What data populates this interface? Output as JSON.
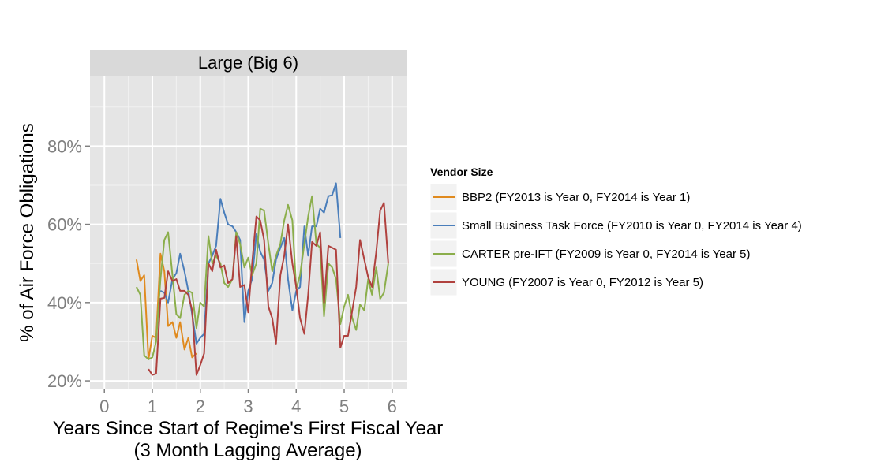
{
  "chart_data": {
    "type": "line",
    "facet_title": "Large (Big 6)",
    "xlabel_line1": "Years Since Start of Regime's First Fiscal Year",
    "xlabel_line2": "(3 Month Lagging Average)",
    "ylabel": "% of Air Force Obligations",
    "xlim": [
      -0.3,
      6.3
    ],
    "ylim": [
      0.18,
      0.98
    ],
    "x_ticks": [
      0,
      1,
      2,
      3,
      4,
      5,
      6
    ],
    "x_tick_labels": [
      "0",
      "1",
      "2",
      "3",
      "4",
      "5",
      "6"
    ],
    "y_ticks": [
      0.2,
      0.4,
      0.6,
      0.8
    ],
    "y_tick_labels": [
      "20%",
      "40%",
      "60%",
      "80%"
    ],
    "grid": true,
    "legend_title": "Vendor Size",
    "legend_position": "right",
    "series": [
      {
        "name": "BBP2 (FY2013 is Year 0, FY2014 is Year 1)",
        "color": "#E08A1E",
        "x": [
          0.67,
          0.75,
          0.83,
          0.92,
          1.0,
          1.08,
          1.17,
          1.25,
          1.33,
          1.42,
          1.5,
          1.58,
          1.67,
          1.75,
          1.83,
          1.92
        ],
        "y": [
          0.51,
          0.455,
          0.47,
          0.255,
          0.315,
          0.31,
          0.525,
          0.48,
          0.34,
          0.35,
          0.31,
          0.35,
          0.28,
          0.31,
          0.26,
          0.27
        ]
      },
      {
        "name": "Small Business Task Force (FY2010 is Year 0, FY2014 is Year 4)",
        "color": "#4A7EBB",
        "x": [
          1.17,
          1.25,
          1.33,
          1.42,
          1.5,
          1.58,
          1.67,
          1.75,
          1.83,
          1.92,
          2.0,
          2.08,
          2.17,
          2.25,
          2.33,
          2.42,
          2.5,
          2.58,
          2.67,
          2.75,
          2.83,
          2.92,
          3.0,
          3.08,
          3.17,
          3.25,
          3.33,
          3.42,
          3.5,
          3.58,
          3.67,
          3.75,
          3.83,
          3.92,
          4.0,
          4.08,
          4.17,
          4.25,
          4.33,
          4.42,
          4.5,
          4.58,
          4.67,
          4.75,
          4.83,
          4.92
        ],
        "y": [
          0.43,
          0.425,
          0.4,
          0.46,
          0.475,
          0.525,
          0.48,
          0.43,
          0.37,
          0.295,
          0.31,
          0.32,
          0.5,
          0.52,
          0.545,
          0.665,
          0.63,
          0.6,
          0.595,
          0.58,
          0.56,
          0.35,
          0.43,
          0.46,
          0.575,
          0.53,
          0.51,
          0.43,
          0.45,
          0.51,
          0.54,
          0.565,
          0.46,
          0.38,
          0.43,
          0.44,
          0.595,
          0.52,
          0.595,
          0.595,
          0.64,
          0.63,
          0.672,
          0.675,
          0.705,
          0.565
        ]
      },
      {
        "name": "CARTER pre-IFT (FY2009 is Year 0, FY2014 is Year 5)",
        "color": "#8BAE4B",
        "x": [
          0.67,
          0.75,
          0.83,
          0.92,
          1.0,
          1.08,
          1.17,
          1.25,
          1.33,
          1.42,
          1.5,
          1.58,
          1.67,
          1.75,
          1.83,
          1.92,
          2.0,
          2.08,
          2.17,
          2.25,
          2.33,
          2.42,
          2.5,
          2.58,
          2.67,
          2.75,
          2.83,
          2.92,
          3.0,
          3.08,
          3.17,
          3.25,
          3.33,
          3.42,
          3.5,
          3.58,
          3.67,
          3.75,
          3.83,
          3.92,
          4.0,
          4.08,
          4.17,
          4.25,
          4.33,
          4.42,
          4.5,
          4.58,
          4.67,
          4.75,
          4.83,
          4.92,
          5.0,
          5.08,
          5.17,
          5.25,
          5.33,
          5.42,
          5.5,
          5.58,
          5.67,
          5.75,
          5.83,
          5.92
        ],
        "y": [
          0.44,
          0.42,
          0.265,
          0.255,
          0.26,
          0.3,
          0.46,
          0.56,
          0.58,
          0.47,
          0.37,
          0.36,
          0.42,
          0.43,
          0.425,
          0.335,
          0.4,
          0.39,
          0.57,
          0.5,
          0.52,
          0.5,
          0.45,
          0.44,
          0.46,
          0.58,
          0.55,
          0.49,
          0.515,
          0.47,
          0.5,
          0.64,
          0.635,
          0.55,
          0.48,
          0.52,
          0.55,
          0.61,
          0.65,
          0.61,
          0.435,
          0.47,
          0.55,
          0.62,
          0.672,
          0.55,
          0.54,
          0.365,
          0.5,
          0.49,
          0.46,
          0.345,
          0.39,
          0.42,
          0.36,
          0.33,
          0.395,
          0.38,
          0.46,
          0.42,
          0.49,
          0.41,
          0.425,
          0.5
        ]
      },
      {
        "name": "YOUNG (FY2007 is Year 0, FY2012 is Year 5)",
        "color": "#B0413E",
        "x": [
          0.92,
          1.0,
          1.08,
          1.17,
          1.25,
          1.33,
          1.42,
          1.5,
          1.58,
          1.67,
          1.75,
          1.83,
          1.92,
          2.0,
          2.08,
          2.17,
          2.25,
          2.33,
          2.42,
          2.5,
          2.58,
          2.67,
          2.75,
          2.83,
          2.92,
          3.0,
          3.08,
          3.17,
          3.25,
          3.33,
          3.42,
          3.5,
          3.58,
          3.67,
          3.75,
          3.83,
          3.92,
          4.0,
          4.08,
          4.17,
          4.25,
          4.33,
          4.42,
          4.5,
          4.58,
          4.67,
          4.75,
          4.83,
          4.92,
          5.0,
          5.08,
          5.17,
          5.25,
          5.33,
          5.42,
          5.5,
          5.58,
          5.67,
          5.75,
          5.83,
          5.92
        ],
        "y": [
          0.23,
          0.215,
          0.218,
          0.41,
          0.412,
          0.48,
          0.455,
          0.46,
          0.43,
          0.43,
          0.42,
          0.38,
          0.215,
          0.24,
          0.27,
          0.5,
          0.48,
          0.535,
          0.49,
          0.495,
          0.45,
          0.46,
          0.57,
          0.44,
          0.445,
          0.375,
          0.5,
          0.62,
          0.61,
          0.56,
          0.39,
          0.36,
          0.295,
          0.47,
          0.52,
          0.6,
          0.5,
          0.44,
          0.36,
          0.32,
          0.42,
          0.555,
          0.545,
          0.58,
          0.4,
          0.545,
          0.54,
          0.535,
          0.285,
          0.315,
          0.315,
          0.38,
          0.44,
          0.56,
          0.51,
          0.465,
          0.44,
          0.53,
          0.635,
          0.655,
          0.5
        ]
      }
    ]
  }
}
